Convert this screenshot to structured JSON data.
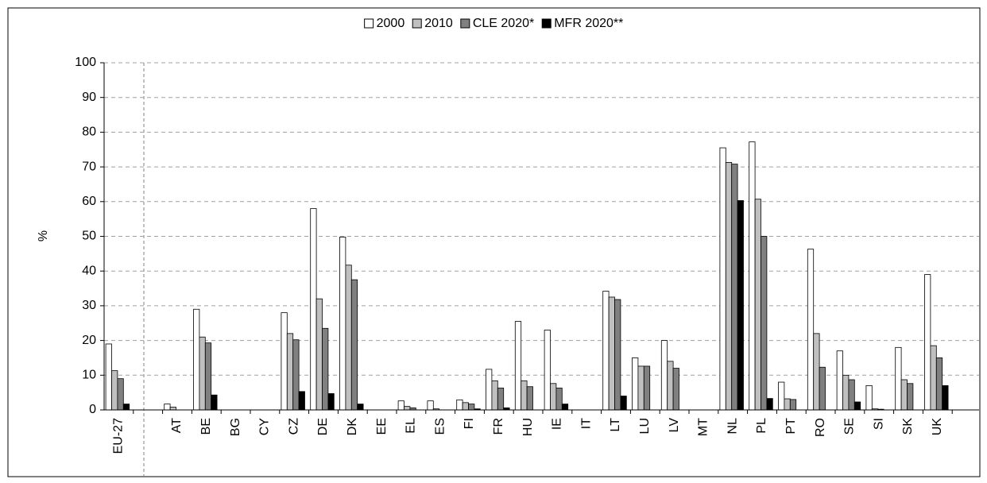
{
  "chart_data": {
    "type": "bar",
    "y_label": "%",
    "categories": [
      "EU-27",
      null,
      "AT",
      "BE",
      "BG",
      "CY",
      "CZ",
      "DE",
      "DK",
      "EE",
      "EL",
      "ES",
      "FI",
      "FR",
      "HU",
      "IE",
      "IT",
      "LT",
      "LU",
      "LV",
      "MT",
      "NL",
      "PL",
      "PT",
      "RO",
      "SE",
      "SI",
      "SK",
      "UK"
    ],
    "series": [
      {
        "name": "2000",
        "color": "#ffffff",
        "values": [
          19,
          null,
          1.7,
          29,
          0,
          0,
          28,
          58,
          49.8,
          0,
          2.6,
          2.6,
          2.9,
          11.7,
          25.5,
          23,
          0,
          34.2,
          15,
          20,
          0,
          75.5,
          77.2,
          8,
          46.3,
          17,
          7,
          18,
          39
        ]
      },
      {
        "name": "2010",
        "color": "#c0c0c0",
        "values": [
          11.3,
          null,
          0.8,
          21,
          0,
          0,
          22,
          32,
          41.7,
          0,
          1,
          0.3,
          2.1,
          8.4,
          8.4,
          7.6,
          0,
          32.5,
          12.6,
          14,
          0,
          71.3,
          60.7,
          3.2,
          22,
          10,
          0.3,
          8.7,
          18.5
        ]
      },
      {
        "name": "CLE 2020*",
        "color": "#808080",
        "values": [
          9,
          null,
          0,
          19.3,
          0,
          0,
          20.2,
          23.5,
          37.5,
          0,
          0.6,
          0,
          1.7,
          6.3,
          6.7,
          6.3,
          0,
          31.8,
          12.6,
          12,
          0,
          70.8,
          50,
          3,
          12.3,
          8.7,
          0.2,
          7.6,
          15
        ]
      },
      {
        "name": "MFR 2020**",
        "color": "#000000",
        "values": [
          1.7,
          null,
          0,
          4.3,
          0,
          0,
          5.3,
          4.7,
          1.7,
          0,
          0,
          0,
          0.3,
          0.6,
          0,
          1.7,
          0,
          4,
          0,
          0,
          0,
          60.3,
          3.3,
          0,
          0,
          2.3,
          0,
          0,
          7
        ]
      }
    ],
    "ylim": [
      0,
      100
    ],
    "yticks": [
      0,
      10,
      20,
      30,
      40,
      50,
      60,
      70,
      80,
      90,
      100
    ],
    "grid": true,
    "legend": "top"
  }
}
